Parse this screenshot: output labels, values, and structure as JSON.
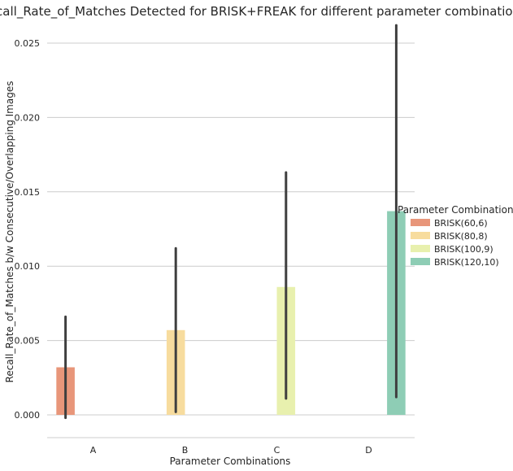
{
  "chart_data": {
    "type": "bar",
    "title": "Recall_Rate_of_Matches Detected for BRISK+FREAK  for different parameter combinations",
    "xlabel": "Parameter Combinations",
    "ylabel": "Recall_Rate_of_Matches b/w Consecutive/Overlapping Images",
    "categories": [
      "A",
      "B",
      "C",
      "D"
    ],
    "ylim": [
      -0.0015,
      0.026
    ],
    "yticks": [
      "0.000",
      "0.005",
      "0.010",
      "0.015",
      "0.020",
      "0.025"
    ],
    "grid": true,
    "legend_title": "Parameter Combinations",
    "legend_placement": "right",
    "series": [
      {
        "name": "BRISK(60,6)",
        "color": "#e8967a",
        "values": [
          0.0032,
          null,
          null,
          null
        ],
        "ci_low": [
          -0.0002,
          null,
          null,
          null
        ],
        "ci_high": [
          0.0066,
          null,
          null,
          null
        ]
      },
      {
        "name": "BRISK(80,8)",
        "color": "#f7dc9e",
        "values": [
          null,
          0.0057,
          null,
          null
        ],
        "ci_low": [
          null,
          0.0002,
          null,
          null
        ],
        "ci_high": [
          null,
          0.0112,
          null,
          null
        ]
      },
      {
        "name": "BRISK(100,9)",
        "color": "#e8f0ae",
        "values": [
          null,
          null,
          0.0086,
          null
        ],
        "ci_low": [
          null,
          null,
          0.0011,
          null
        ],
        "ci_high": [
          null,
          null,
          0.0163,
          null
        ]
      },
      {
        "name": "BRISK(120,10)",
        "color": "#8ecdb5",
        "values": [
          null,
          null,
          null,
          0.0137
        ],
        "ci_low": [
          null,
          null,
          null,
          0.0012
        ],
        "ci_high": [
          null,
          null,
          null,
          0.0262
        ]
      }
    ]
  }
}
